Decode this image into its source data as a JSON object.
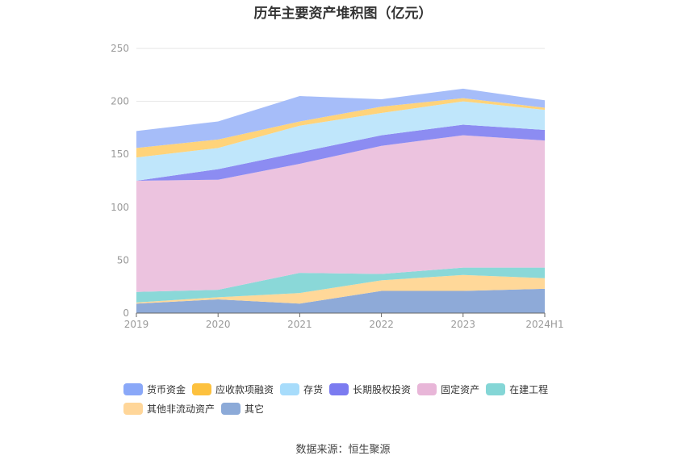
{
  "chart_data": {
    "type": "area",
    "stacked": true,
    "title": "历年主要资产堆积图（亿元）",
    "categories": [
      "2019",
      "2020",
      "2021",
      "2022",
      "2023",
      "2024H1"
    ],
    "yticks": [
      "0",
      "50",
      "100",
      "150",
      "200",
      "250"
    ],
    "ylim": [
      0,
      250
    ],
    "grid": true,
    "legend_position": "bottom",
    "series": [
      {
        "name": "其它",
        "color": "#8eaad8",
        "values": [
          9,
          13,
          9,
          21,
          21,
          23
        ]
      },
      {
        "name": "其他非流动资产",
        "color": "#ffd899",
        "values": [
          1,
          2,
          10,
          10,
          15,
          10
        ]
      },
      {
        "name": "在建工程",
        "color": "#8ad8d8",
        "values": [
          10,
          7,
          19,
          6,
          7,
          10
        ]
      },
      {
        "name": "固定资产",
        "color": "#ecc3df",
        "values": [
          105,
          104,
          103,
          121,
          125,
          120
        ]
      },
      {
        "name": "长期股权投资",
        "color": "#8c8cf2",
        "values": [
          0,
          10,
          11,
          10,
          10,
          10
        ]
      },
      {
        "name": "存货",
        "color": "#bfe6fb",
        "values": [
          22,
          20,
          25,
          21,
          22,
          19
        ]
      },
      {
        "name": "应收款项融资",
        "color": "#ffd37a",
        "values": [
          9,
          8,
          4,
          6,
          3,
          2
        ]
      },
      {
        "name": "货币资金",
        "color": "#a6bdf9",
        "values": [
          16,
          17,
          24,
          7,
          9,
          7
        ]
      }
    ]
  },
  "legend": [
    {
      "label": "货币资金",
      "color": "#8aa8f8"
    },
    {
      "label": "应收款项融资",
      "color": "#fdc13e"
    },
    {
      "label": "存货",
      "color": "#a7dcfb"
    },
    {
      "label": "长期股权投资",
      "color": "#7b7bf0"
    },
    {
      "label": "固定资产",
      "color": "#e8b6d8"
    },
    {
      "label": "在建工程",
      "color": "#84d6d6"
    },
    {
      "label": "其他非流动资产",
      "color": "#ffd699"
    },
    {
      "label": "其它",
      "color": "#8caad8"
    }
  ],
  "source": "数据来源：恒生聚源"
}
